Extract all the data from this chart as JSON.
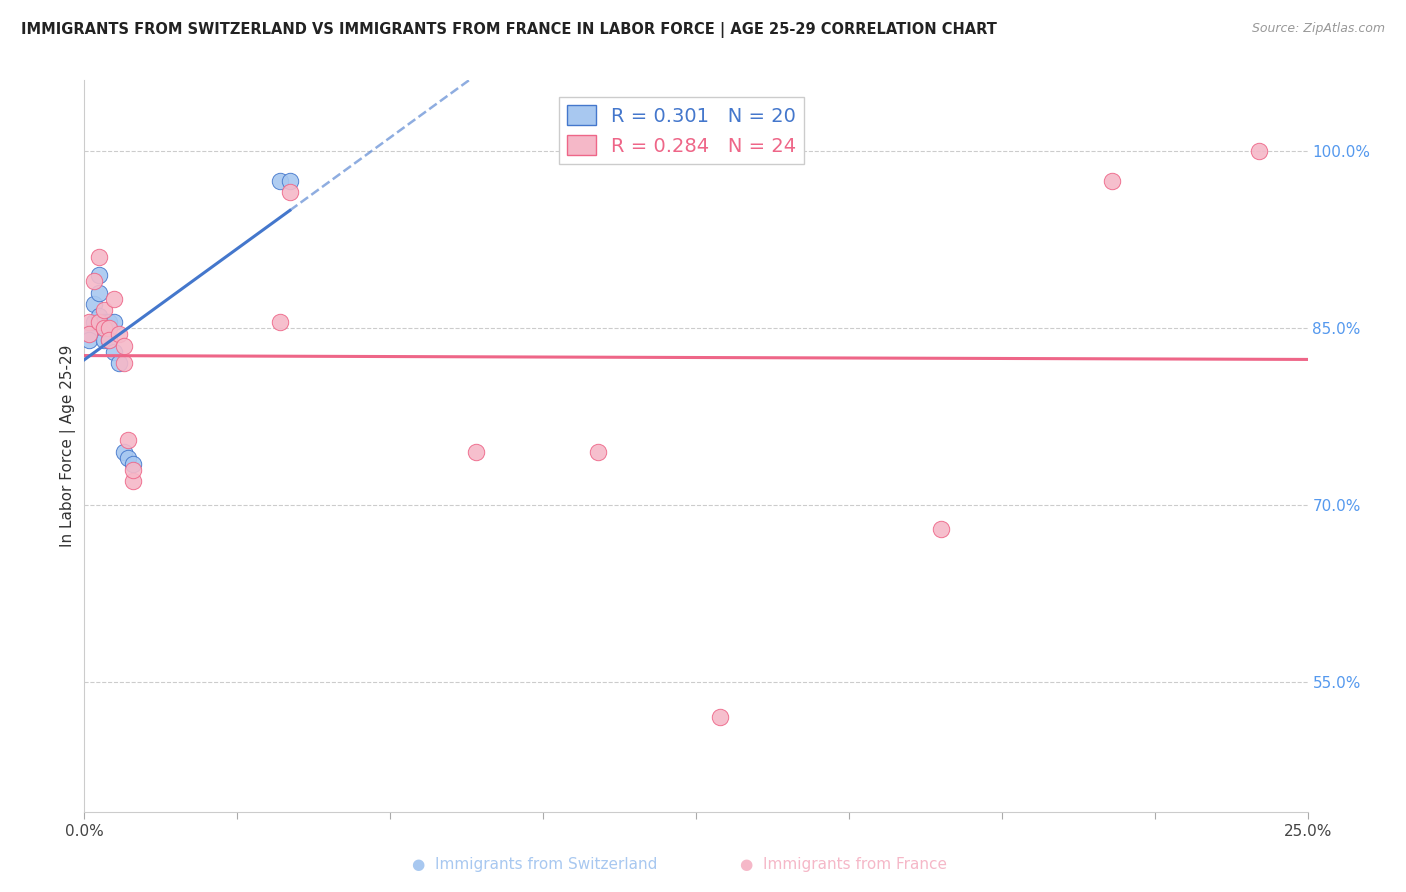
{
  "title": "IMMIGRANTS FROM SWITZERLAND VS IMMIGRANTS FROM FRANCE IN LABOR FORCE | AGE 25-29 CORRELATION CHART",
  "source": "Source: ZipAtlas.com",
  "ylabel": "In Labor Force | Age 25-29",
  "yticks": [
    0.55,
    0.7,
    0.85,
    1.0
  ],
  "ytick_labels": [
    "55.0%",
    "70.0%",
    "85.0%",
    "100.0%"
  ],
  "xlim": [
    0.0,
    0.25
  ],
  "ylim": [
    0.44,
    1.06
  ],
  "switzerland_R": 0.301,
  "switzerland_N": 20,
  "france_R": 0.284,
  "france_N": 24,
  "switzerland_color": "#a8c8f0",
  "france_color": "#f5b8c8",
  "trendline_switzerland_color": "#4477cc",
  "trendline_france_color": "#ee6688",
  "background_color": "#ffffff",
  "grid_color": "#cccccc",
  "right_axis_color": "#5599ee",
  "switzerland_x": [
    0.001,
    0.001,
    0.002,
    0.002,
    0.003,
    0.003,
    0.003,
    0.004,
    0.004,
    0.004,
    0.005,
    0.005,
    0.006,
    0.006,
    0.007,
    0.008,
    0.009,
    0.01,
    0.04,
    0.042
  ],
  "switzerland_y": [
    0.845,
    0.84,
    0.87,
    0.855,
    0.895,
    0.88,
    0.86,
    0.855,
    0.85,
    0.84,
    0.84,
    0.855,
    0.855,
    0.83,
    0.82,
    0.745,
    0.74,
    0.735,
    0.975,
    0.975
  ],
  "france_x": [
    0.001,
    0.001,
    0.002,
    0.003,
    0.003,
    0.004,
    0.004,
    0.005,
    0.005,
    0.006,
    0.007,
    0.008,
    0.008,
    0.009,
    0.01,
    0.01,
    0.04,
    0.042,
    0.08,
    0.105,
    0.13,
    0.175,
    0.21,
    0.24
  ],
  "france_y": [
    0.855,
    0.845,
    0.89,
    0.91,
    0.855,
    0.865,
    0.85,
    0.85,
    0.84,
    0.875,
    0.845,
    0.835,
    0.82,
    0.755,
    0.72,
    0.73,
    0.855,
    0.965,
    0.745,
    0.745,
    0.52,
    0.68,
    0.975,
    1.0
  ],
  "legend_label_switzerland": "Immigrants from Switzerland",
  "legend_label_france": "Immigrants from France"
}
